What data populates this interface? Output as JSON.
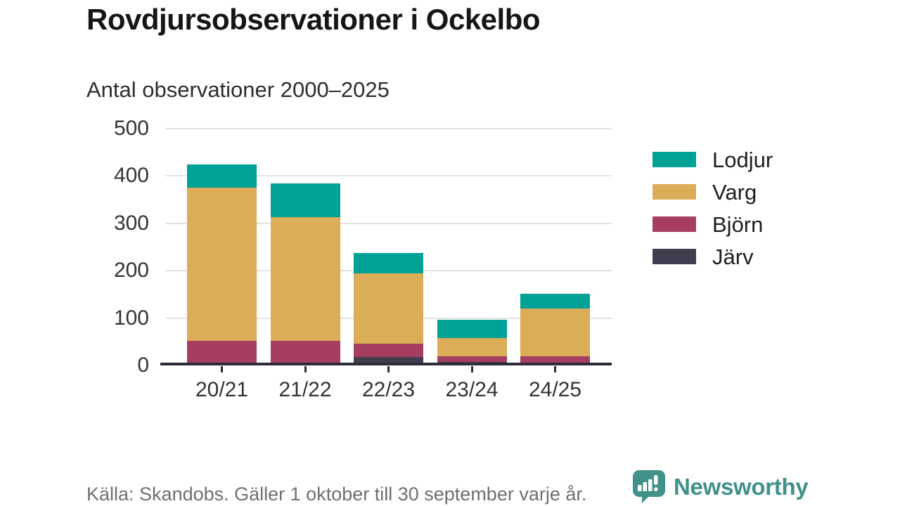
{
  "chart_data": {
    "type": "bar",
    "stacked": true,
    "title": "Rovdjursobservationer i Ockelbo",
    "subtitle": "Antal observationer 2000–2025",
    "categories": [
      "20/21",
      "21/22",
      "22/23",
      "23/24",
      "24/25"
    ],
    "series": [
      {
        "name": "Järv",
        "color": "#423d4e",
        "values": [
          2,
          5,
          18,
          7,
          5
        ]
      },
      {
        "name": "Björn",
        "color": "#a63e61",
        "values": [
          50,
          47,
          28,
          12,
          14
        ]
      },
      {
        "name": "Varg",
        "color": "#dbad58",
        "values": [
          323,
          261,
          148,
          39,
          101
        ]
      },
      {
        "name": "Lodjur",
        "color": "#00a196",
        "values": [
          50,
          72,
          43,
          38,
          32
        ]
      }
    ],
    "totals": [
      425,
      385,
      237,
      96,
      152
    ],
    "legend": [
      "Lodjur",
      "Varg",
      "Björn",
      "Järv"
    ],
    "legend_position": "right",
    "y_ticks": [
      0,
      100,
      200,
      300,
      400,
      500
    ],
    "ylim": [
      0,
      500
    ],
    "grid": true,
    "xlabel": "",
    "ylabel": ""
  },
  "footer": {
    "source": "Källa: Skandobs. Gäller 1 oktober till 30 september varje år.",
    "brand": "Newsworthy"
  },
  "colors": {
    "brand_teal": "#3f918a",
    "axis": "#2e2c38",
    "gridline": "#e3e3e3",
    "text_dark": "#161616",
    "text_muted": "#6f6f6f"
  }
}
